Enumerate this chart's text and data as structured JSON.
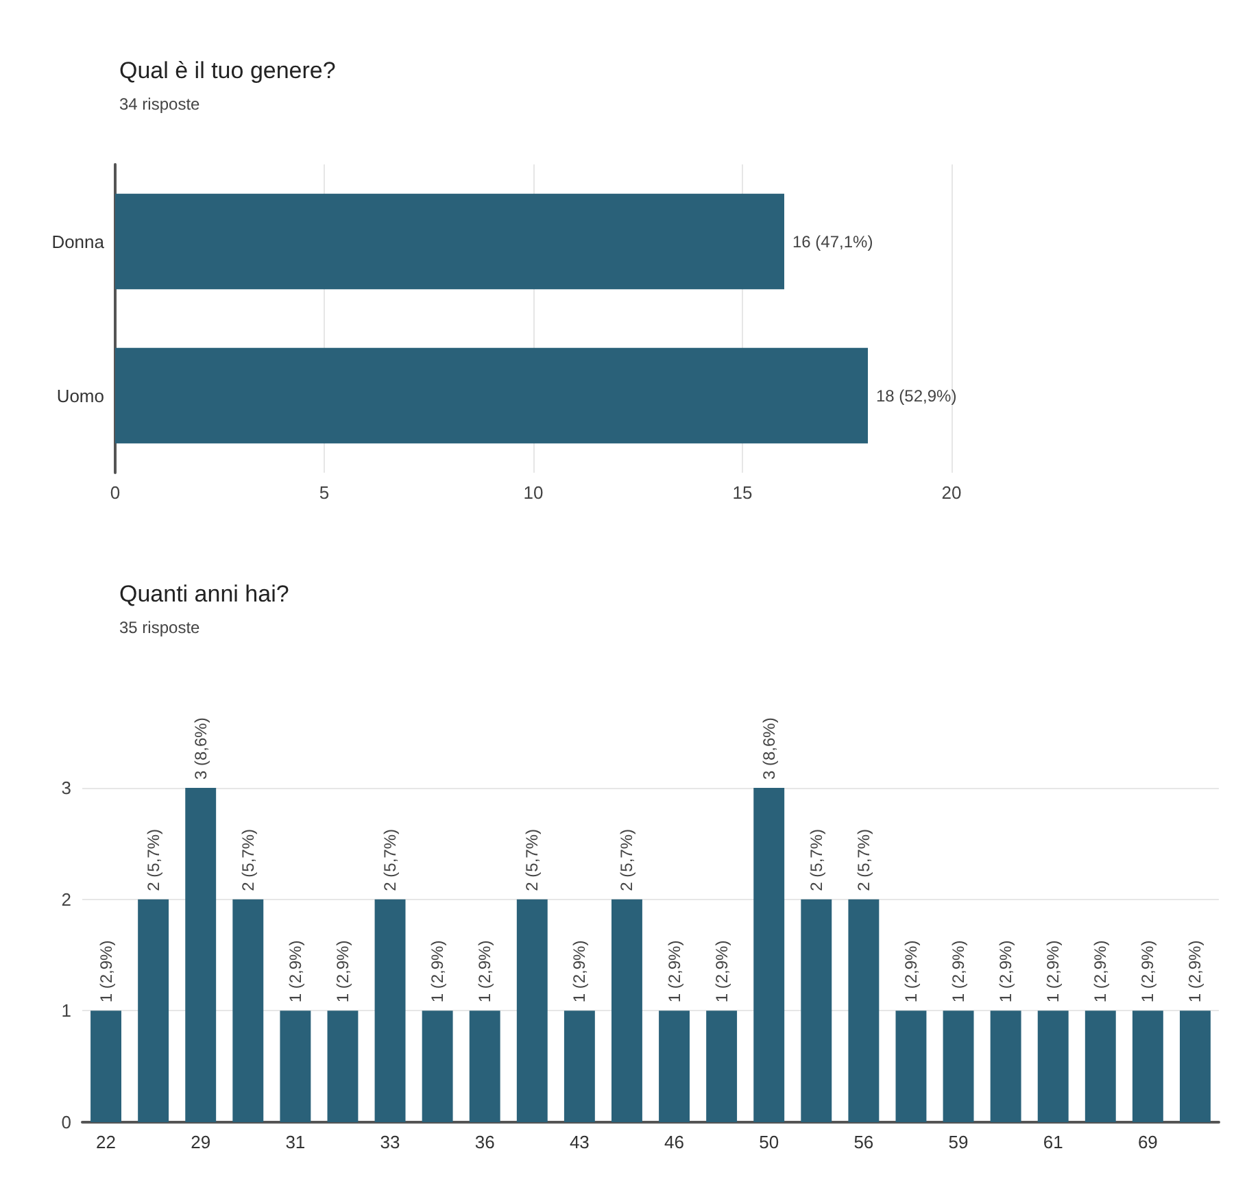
{
  "chart_data": [
    {
      "type": "bar",
      "title": "Qual è il tuo genere?",
      "subtitle": "34 risposte",
      "orientation": "horizontal",
      "categories": [
        "Donna",
        "Uomo"
      ],
      "values": [
        16,
        18
      ],
      "value_labels": [
        "16 (47,1%)",
        "18 (52,9%)"
      ],
      "color": "#2a6179",
      "xlim": [
        0,
        20
      ],
      "xticks": [
        0,
        5,
        10,
        15,
        20
      ],
      "grid": "x"
    },
    {
      "type": "bar",
      "title": "Quanti anni hai?",
      "subtitle": "35 risposte",
      "categories": [
        "22",
        null,
        "29",
        null,
        "31",
        null,
        "33",
        null,
        "36",
        null,
        "43",
        null,
        "46",
        null,
        "50",
        null,
        "56",
        null,
        "59",
        null,
        "61",
        null,
        "69",
        null
      ],
      "values": [
        1,
        2,
        3,
        2,
        1,
        1,
        2,
        1,
        1,
        2,
        1,
        2,
        1,
        1,
        3,
        2,
        2,
        1,
        1,
        1,
        1,
        1,
        1,
        1
      ],
      "value_labels": [
        "1 (2,9%)",
        "2 (5,7%)",
        "3 (8,6%)",
        "2 (5,7%)",
        "1 (2,9%)",
        "1 (2,9%)",
        "2 (5,7%)",
        "1 (2,9%)",
        "1 (2,9%)",
        "2 (5,7%)",
        "1 (2,9%)",
        "2 (5,7%)",
        "1 (2,9%)",
        "1 (2,9%)",
        "3 (8,6%)",
        "2 (5,7%)",
        "2 (5,7%)",
        "1 (2,9%)",
        "1 (2,9%)",
        "1 (2,9%)",
        "1 (2,9%)",
        "1 (2,9%)",
        "1 (2,9%)",
        "1 (2,9%)"
      ],
      "color": "#2a6179",
      "ylim": [
        0,
        3
      ],
      "yticks": [
        0,
        1,
        2,
        3
      ],
      "grid": "y"
    }
  ]
}
